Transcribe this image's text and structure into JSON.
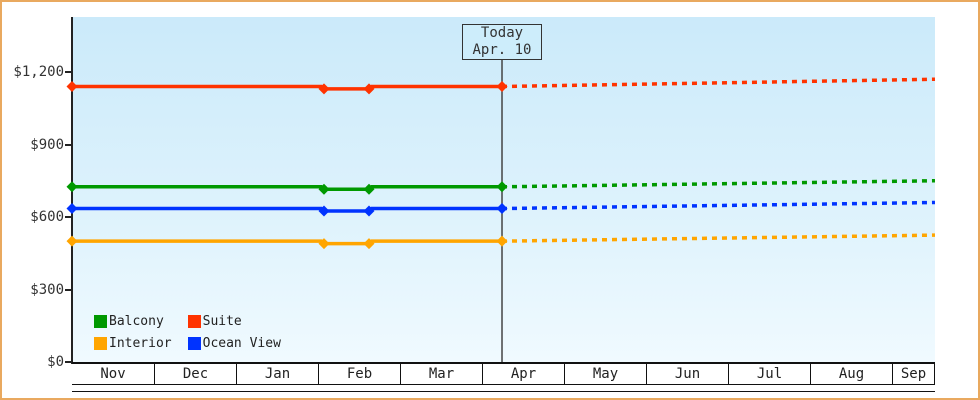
{
  "window": {
    "border_color": "#E9A95F"
  },
  "chart_data": {
    "type": "line",
    "title": "",
    "x_unit": "months_from_nov_1",
    "categories": [
      "Nov",
      "Dec",
      "Jan",
      "Feb",
      "Mar",
      "Apr",
      "May",
      "Jun",
      "Jul",
      "Aug",
      "Sep"
    ],
    "y_ticks": [
      {
        "label": "$0",
        "value": 0
      },
      {
        "label": "$300",
        "value": 300
      },
      {
        "label": "$600",
        "value": 600
      },
      {
        "label": "$900",
        "value": 900
      },
      {
        "label": "$1,200",
        "value": 1200
      }
    ],
    "ylim": [
      0,
      1430
    ],
    "grid": false,
    "legend_position": "bottom-left",
    "today_marker": {
      "line1": "Today",
      "line2": "Apr. 10",
      "month_position": 5.244
    },
    "series": [
      {
        "name": "Suite",
        "color": "#FF3300",
        "history": [
          [
            0,
            1140
          ],
          [
            3.04,
            1140
          ],
          [
            3.073,
            1130
          ],
          [
            3.622,
            1130
          ],
          [
            3.655,
            1140
          ],
          [
            5.244,
            1140
          ]
        ],
        "markers": [
          [
            0,
            1140
          ],
          [
            3.073,
            1130
          ],
          [
            3.622,
            1130
          ],
          [
            5.244,
            1140
          ]
        ],
        "forecast": [
          [
            5.244,
            1140
          ],
          [
            10.524,
            1170
          ]
        ]
      },
      {
        "name": "Balcony",
        "color": "#009900",
        "history": [
          [
            0,
            725
          ],
          [
            3.04,
            725
          ],
          [
            3.073,
            715
          ],
          [
            3.622,
            715
          ],
          [
            3.655,
            725
          ],
          [
            5.244,
            725
          ]
        ],
        "markers": [
          [
            0,
            725
          ],
          [
            3.073,
            715
          ],
          [
            3.622,
            715
          ],
          [
            5.244,
            725
          ]
        ],
        "forecast": [
          [
            5.244,
            725
          ],
          [
            10.524,
            750
          ]
        ]
      },
      {
        "name": "Ocean View",
        "color": "#0033FF",
        "history": [
          [
            0,
            635
          ],
          [
            3.04,
            635
          ],
          [
            3.073,
            625
          ],
          [
            3.622,
            625
          ],
          [
            3.655,
            635
          ],
          [
            5.244,
            635
          ]
        ],
        "markers": [
          [
            0,
            635
          ],
          [
            3.073,
            625
          ],
          [
            3.622,
            625
          ],
          [
            5.244,
            635
          ]
        ],
        "forecast": [
          [
            5.244,
            635
          ],
          [
            10.524,
            660
          ]
        ]
      },
      {
        "name": "Interior",
        "color": "#FFA500",
        "history": [
          [
            0,
            500
          ],
          [
            3.04,
            500
          ],
          [
            3.073,
            490
          ],
          [
            3.622,
            490
          ],
          [
            3.655,
            500
          ],
          [
            5.244,
            500
          ]
        ],
        "markers": [
          [
            0,
            500
          ],
          [
            3.073,
            490
          ],
          [
            3.622,
            490
          ],
          [
            5.244,
            500
          ]
        ],
        "forecast": [
          [
            5.244,
            500
          ],
          [
            10.524,
            525
          ]
        ]
      }
    ],
    "legend": [
      {
        "label": "Balcony",
        "color": "#009900"
      },
      {
        "label": "Suite",
        "color": "#FF3300"
      },
      {
        "label": "Interior",
        "color": "#FFA500"
      },
      {
        "label": "Ocean View",
        "color": "#0033FF"
      }
    ]
  }
}
